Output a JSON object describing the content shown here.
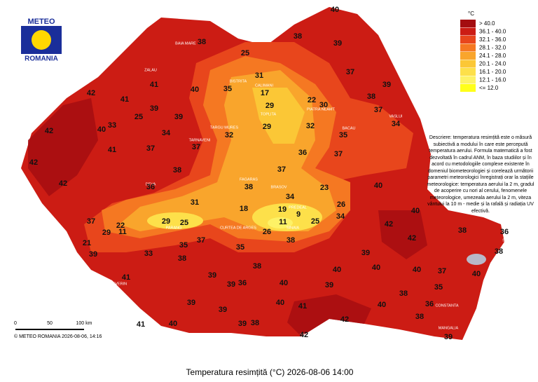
{
  "logo": {
    "top": "METEO",
    "bottom": "ROMANIA"
  },
  "legend": {
    "unit": "°C",
    "items": [
      {
        "label": "> 40.0",
        "color": "#a40d10"
      },
      {
        "label": "36.1 - 40.0",
        "color": "#cc1c14"
      },
      {
        "label": "32.1 - 36.0",
        "color": "#e8461c"
      },
      {
        "label": "28.1 - 32.0",
        "color": "#f57822"
      },
      {
        "label": "24.1 - 28.0",
        "color": "#f9a52c"
      },
      {
        "label": "20.1 - 24.0",
        "color": "#fbc736"
      },
      {
        "label": "16.1 - 20.0",
        "color": "#fde04a"
      },
      {
        "label": "12.1 - 16.0",
        "color": "#fdf266"
      },
      {
        "label": "<= 12.0",
        "color": "#ffff1a"
      }
    ]
  },
  "description": "Descriere: temperatura resimțită este o măsură subiectivă a modului în care este percepută temperatura aerului. Formula matematică a fost dezvoltată în cadrul ANM, în baza studiilor și în acord cu metodologiile complexe existente în domeniul biometeorologiei și corelează următorii parametri meteorologici înregistrați orar la stațiile meteorologice: temperatura aerului la 2 m, gradul de acoperire cu nori al cerului, fenomenele meteorologice, umezeala aerului la 2 m, viteza vântului la 10 m - medie și la rafală și radiația UV efectivă.",
  "scale": {
    "labels": [
      "0",
      "50",
      "100 km"
    ]
  },
  "copyright": "© METEO ROMANIA 2026-08-06, 14:16",
  "title": "Temperatura resimțită (°C) 2026-08-06 14:00",
  "places": [
    "BAIA MARE",
    "BISTRITA",
    "CALIMANI",
    "TOPLITA",
    "PIATRA NEAMT",
    "BACAU",
    "VASLUI",
    "TARGU MURES",
    "DEVA",
    "FAGARAS",
    "BRASOV",
    "PREDEAL",
    "SINAIA",
    "PARANG",
    "CURTEA DE ARGES",
    "SULINA",
    "CONSTANTA",
    "MANGALIA",
    "DROBETA TURNU SEVERIN",
    "GIURGIU",
    "ZALAU",
    "TARNAVENI"
  ],
  "stations": [
    40,
    38,
    39,
    25,
    38,
    31,
    37,
    39,
    41,
    40,
    35,
    17,
    22,
    30,
    42,
    41,
    39,
    29,
    38,
    37,
    25,
    39,
    33,
    34,
    32,
    29,
    32,
    35,
    34,
    42,
    40,
    41,
    37,
    37,
    36,
    37,
    42,
    37,
    38,
    42,
    36,
    38,
    34,
    23,
    40,
    31,
    18,
    19,
    26,
    34,
    40,
    37,
    29,
    25,
    11,
    9,
    22,
    11,
    29,
    25,
    26,
    42,
    42,
    38,
    36,
    21,
    35,
    35,
    37,
    38,
    39,
    33,
    38,
    38,
    39,
    38,
    41,
    40,
    40,
    40,
    37,
    40,
    39,
    39,
    36,
    40,
    39,
    38,
    36,
    40,
    41,
    39,
    39,
    40,
    41,
    39,
    38,
    42,
    38,
    42,
    39,
    35,
    40
  ]
}
